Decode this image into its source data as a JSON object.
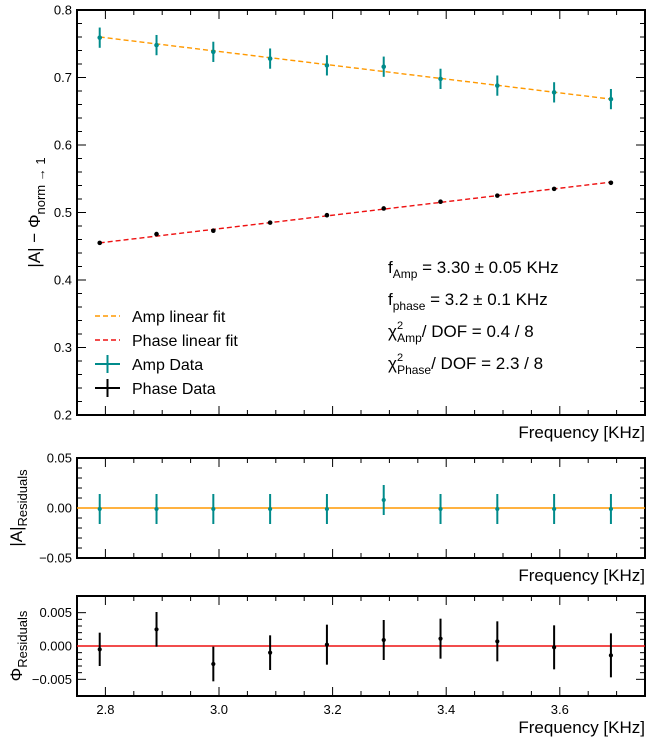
{
  "chart_data": [
    {
      "type": "scatter",
      "panel": "main",
      "ylabel": "|A| − Φ",
      "ylabel_sub": "norm → 1",
      "xlabel": "Frequency [KHz]",
      "xlim": [
        2.75,
        3.75
      ],
      "ylim": [
        0.2,
        0.8
      ],
      "yticks": [
        "0.2",
        "0.3",
        "0.4",
        "0.5",
        "0.6",
        "0.7",
        "0.8"
      ],
      "x": [
        2.79,
        2.89,
        2.99,
        3.09,
        3.19,
        3.29,
        3.39,
        3.49,
        3.59,
        3.69
      ],
      "series": [
        {
          "name": "Amp Data",
          "color": "#008b8b",
          "values": [
            0.759,
            0.748,
            0.738,
            0.728,
            0.718,
            0.716,
            0.698,
            0.688,
            0.678,
            0.668
          ],
          "errors": [
            0.015,
            0.015,
            0.015,
            0.015,
            0.015,
            0.015,
            0.015,
            0.015,
            0.015,
            0.015
          ]
        },
        {
          "name": "Phase Data",
          "color": "#000000",
          "values": [
            0.455,
            0.468,
            0.473,
            0.485,
            0.496,
            0.506,
            0.516,
            0.525,
            0.535,
            0.544
          ],
          "errors": [
            0.002,
            0.002,
            0.002,
            0.002,
            0.002,
            0.002,
            0.002,
            0.002,
            0.002,
            0.002
          ]
        }
      ],
      "fits": [
        {
          "name": "Amp linear fit",
          "color": "#ff9900",
          "x": [
            2.79,
            3.69
          ],
          "y": [
            0.76,
            0.668
          ]
        },
        {
          "name": "Phase linear fit",
          "color": "#ee1111",
          "x": [
            2.79,
            3.69
          ],
          "y": [
            0.455,
            0.545
          ]
        }
      ],
      "legend": {
        "position": "lower-left",
        "entries": [
          "Amp linear fit",
          "Phase linear fit",
          "Amp Data",
          "Phase Data"
        ]
      },
      "annotations": [
        {
          "main": "f",
          "sub": "Amp",
          "rest": " = 3.30 ± 0.05 KHz"
        },
        {
          "main": "f",
          "sub": "phase",
          "rest": " = 3.2 ± 0.1 KHz"
        },
        {
          "main": "χ",
          "sup": "2",
          "sub": "Amp",
          "rest": "/ DOF = 0.4 / 8"
        },
        {
          "main": "χ",
          "sup": "2",
          "sub": "Phase",
          "rest": "/ DOF = 2.3 / 8"
        }
      ]
    },
    {
      "type": "scatter",
      "panel": "amp-residuals",
      "ylabel": "|A|",
      "ylabel_sub": "Residuals",
      "xlabel": "Frequency [KHz]",
      "xlim": [
        2.75,
        3.75
      ],
      "ylim": [
        -0.05,
        0.05
      ],
      "yticks": [
        "−0.05",
        "0.00",
        "0.05"
      ],
      "x": [
        2.79,
        2.89,
        2.99,
        3.09,
        3.19,
        3.29,
        3.39,
        3.49,
        3.59,
        3.69
      ],
      "values": [
        -0.001,
        -0.001,
        -0.001,
        -0.001,
        -0.001,
        0.008,
        -0.001,
        -0.001,
        -0.001,
        -0.001
      ],
      "errors": [
        0.015,
        0.015,
        0.015,
        0.015,
        0.015,
        0.015,
        0.015,
        0.015,
        0.015,
        0.015
      ],
      "zero_line_color": "#ff9900",
      "marker_color": "#008b8b"
    },
    {
      "type": "scatter",
      "panel": "phase-residuals",
      "ylabel": "Φ",
      "ylabel_sub": "Residuals",
      "xlabel": "Frequency [KHz]",
      "xlim": [
        2.75,
        3.75
      ],
      "ylim": [
        -0.0075,
        0.0075
      ],
      "yticks": [
        "−0.005",
        "0.000",
        "0.005"
      ],
      "xticks": [
        "2.8",
        "3.0",
        "3.2",
        "3.4",
        "3.6"
      ],
      "x": [
        2.79,
        2.89,
        2.99,
        3.09,
        3.19,
        3.29,
        3.39,
        3.49,
        3.59,
        3.69
      ],
      "values": [
        -0.0005,
        0.0025,
        -0.0027,
        -0.001,
        0.0002,
        0.0009,
        0.0011,
        0.0007,
        -0.0002,
        -0.0014
      ],
      "errors": [
        0.0025,
        0.0026,
        0.0026,
        0.0026,
        0.003,
        0.003,
        0.003,
        0.003,
        0.0033,
        0.0033
      ],
      "zero_line_color": "#ee1111",
      "marker_color": "#000000"
    }
  ]
}
